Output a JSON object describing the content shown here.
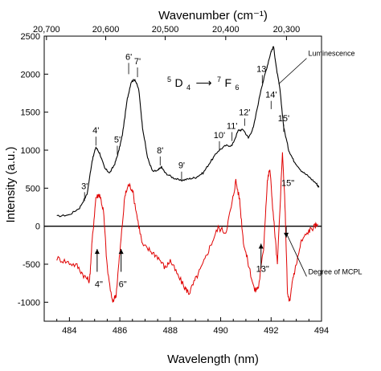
{
  "chart_data": {
    "type": "line",
    "xlabel": "Wavelength (nm)",
    "ylabel": "Intensity (a.u.)",
    "top_xlabel": "Wavenumber (cm⁻¹)",
    "xlim": [
      483,
      494
    ],
    "ylim": [
      -1250,
      2500
    ],
    "x_ticks": [
      484,
      486,
      488,
      490,
      492,
      494
    ],
    "y_ticks": [
      -1000,
      -500,
      0,
      500,
      1000,
      1500,
      2000,
      2500
    ],
    "top_ticks": [
      {
        "label": "20,700",
        "x": 483.09
      },
      {
        "label": "20,600",
        "x": 485.44
      },
      {
        "label": "20,500",
        "x": 487.8
      },
      {
        "label": "20,400",
        "x": 490.2
      },
      {
        "label": "20,300",
        "x": 492.61
      }
    ],
    "transition": {
      "upper_sup": "5",
      "upper": "D",
      "upper_sub": "4",
      "arrow": "⟶",
      "lower_sup": "7",
      "lower": "F",
      "lower_sub": "6"
    },
    "series": [
      {
        "name": "Luminescence",
        "color": "#000000",
        "points": [
          [
            483.5,
            130
          ],
          [
            484.0,
            150
          ],
          [
            484.4,
            240
          ],
          [
            484.7,
            420
          ],
          [
            484.9,
            860
          ],
          [
            485.05,
            1040
          ],
          [
            485.2,
            960
          ],
          [
            485.4,
            760
          ],
          [
            485.6,
            700
          ],
          [
            485.8,
            820
          ],
          [
            485.95,
            980
          ],
          [
            486.1,
            1200
          ],
          [
            486.3,
            1680
          ],
          [
            486.45,
            1900
          ],
          [
            486.6,
            1930
          ],
          [
            486.75,
            1800
          ],
          [
            486.9,
            1300
          ],
          [
            487.1,
            900
          ],
          [
            487.3,
            720
          ],
          [
            487.5,
            730
          ],
          [
            487.65,
            780
          ],
          [
            487.8,
            700
          ],
          [
            488.1,
            640
          ],
          [
            488.4,
            600
          ],
          [
            488.7,
            620
          ],
          [
            489.0,
            640
          ],
          [
            489.3,
            700
          ],
          [
            489.6,
            850
          ],
          [
            489.9,
            990
          ],
          [
            490.2,
            1060
          ],
          [
            490.45,
            1060
          ],
          [
            490.7,
            1260
          ],
          [
            490.9,
            1270
          ],
          [
            491.1,
            1160
          ],
          [
            491.3,
            1300
          ],
          [
            491.6,
            1800
          ],
          [
            491.8,
            2050
          ],
          [
            492.0,
            2300
          ],
          [
            492.1,
            2360
          ],
          [
            492.2,
            2100
          ],
          [
            492.35,
            1800
          ],
          [
            492.5,
            1300
          ],
          [
            492.7,
            1000
          ],
          [
            492.9,
            860
          ],
          [
            493.2,
            730
          ],
          [
            493.5,
            650
          ],
          [
            493.8,
            560
          ],
          [
            493.9,
            510
          ]
        ]
      },
      {
        "name": "Degree of MCPL",
        "color": "#e00000",
        "points": [
          [
            483.5,
            -420
          ],
          [
            483.9,
            -470
          ],
          [
            484.3,
            -520
          ],
          [
            484.6,
            -660
          ],
          [
            484.8,
            -720
          ],
          [
            484.9,
            -200
          ],
          [
            485.05,
            380
          ],
          [
            485.2,
            420
          ],
          [
            485.35,
            200
          ],
          [
            485.5,
            -550
          ],
          [
            485.7,
            -1000
          ],
          [
            485.85,
            -900
          ],
          [
            486.0,
            -350
          ],
          [
            486.2,
            400
          ],
          [
            486.35,
            550
          ],
          [
            486.5,
            480
          ],
          [
            486.7,
            100
          ],
          [
            486.9,
            -250
          ],
          [
            487.2,
            -320
          ],
          [
            487.5,
            -400
          ],
          [
            487.8,
            -550
          ],
          [
            488.0,
            -450
          ],
          [
            488.3,
            -650
          ],
          [
            488.6,
            -820
          ],
          [
            488.75,
            -880
          ],
          [
            489.0,
            -700
          ],
          [
            489.3,
            -500
          ],
          [
            489.6,
            -250
          ],
          [
            489.9,
            -20
          ],
          [
            490.2,
            -80
          ],
          [
            490.45,
            300
          ],
          [
            490.6,
            600
          ],
          [
            490.75,
            350
          ],
          [
            490.9,
            -200
          ],
          [
            491.1,
            -500
          ],
          [
            491.35,
            -850
          ],
          [
            491.5,
            -800
          ],
          [
            491.7,
            -300
          ],
          [
            491.85,
            600
          ],
          [
            491.95,
            750
          ],
          [
            492.1,
            100
          ],
          [
            492.25,
            -500
          ],
          [
            492.45,
            950
          ],
          [
            492.55,
            300
          ],
          [
            492.65,
            -900
          ],
          [
            492.75,
            -1000
          ],
          [
            492.85,
            -700
          ],
          [
            493.0,
            -500
          ],
          [
            493.2,
            -200
          ],
          [
            493.5,
            -60
          ],
          [
            493.7,
            -10
          ],
          [
            493.85,
            30
          ]
        ]
      }
    ],
    "peak_labels": [
      {
        "text": "3'",
        "x": 484.6,
        "tip": 330,
        "label_y": 490
      },
      {
        "text": "4'",
        "x": 485.05,
        "tip": 1060,
        "label_y": 1220
      },
      {
        "text": "5'",
        "x": 485.9,
        "tip": 940,
        "label_y": 1100
      },
      {
        "text": "6'",
        "x": 486.35,
        "tip": 2000,
        "label_y": 2190
      },
      {
        "text": "7'",
        "x": 486.7,
        "tip": 1960,
        "label_y": 2130
      },
      {
        "text": "8'",
        "x": 487.6,
        "tip": 800,
        "label_y": 960
      },
      {
        "text": "9'",
        "x": 488.45,
        "tip": 600,
        "label_y": 760
      },
      {
        "text": "10'",
        "x": 489.95,
        "tip": 1000,
        "label_y": 1160
      },
      {
        "text": "11'",
        "x": 490.45,
        "tip": 1120,
        "label_y": 1280
      },
      {
        "text": "12'",
        "x": 490.95,
        "tip": 1320,
        "label_y": 1460
      },
      {
        "text": "13'",
        "x": 491.65,
        "tip": 1880,
        "label_y": 2030
      },
      {
        "text": "14'",
        "x": 492.0,
        "tip": 1540,
        "label_y": 1690
      },
      {
        "text": "15'",
        "x": 492.5,
        "tip": 1240,
        "label_y": 1380
      }
    ],
    "mcpl_labels": [
      {
        "text": "4\"",
        "x": 485.1,
        "y_from": -600,
        "y_to": -300,
        "label_y": -800
      },
      {
        "text": "6\"",
        "x": 486.05,
        "y_from": -600,
        "y_to": -300,
        "label_y": -800
      },
      {
        "text": "13\"",
        "x": 491.6,
        "y_from": -560,
        "y_to": -230,
        "label_y": -600
      },
      {
        "text": "15\"",
        "x": 492.6,
        "y_from": -10,
        "y_to": -150,
        "label_y": 530
      }
    ],
    "annotations": [
      {
        "text": "Luminescence",
        "x": 493.6,
        "y": 2240,
        "pointer_x": 492.3,
        "pointer_y": 1870
      },
      {
        "text": "Degree of MCPL",
        "x": 493.6,
        "y": -630,
        "pointer_x": 492.6,
        "pointer_y": -90
      }
    ]
  }
}
